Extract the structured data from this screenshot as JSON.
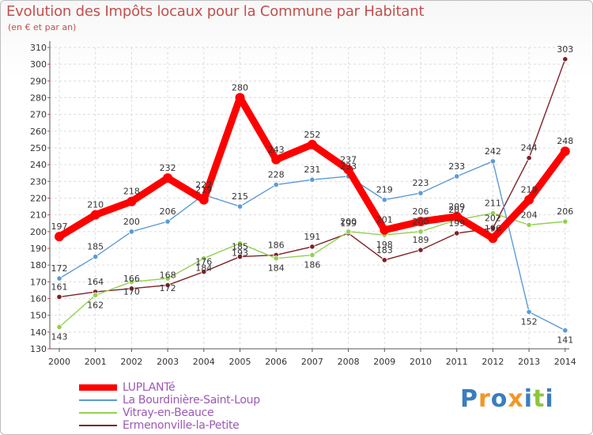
{
  "chart_data": {
    "type": "line",
    "title": "Evolution des Impôts locaux pour la Commune par Habitant",
    "subtitle": "(en € et par an)",
    "x": [
      "2000",
      "2001",
      "2002",
      "2003",
      "2004",
      "2005",
      "2006",
      "2007",
      "2008",
      "2009",
      "2010",
      "2011",
      "2012",
      "2013",
      "2014"
    ],
    "yticks": [
      130,
      140,
      150,
      160,
      170,
      180,
      190,
      200,
      210,
      220,
      230,
      240,
      250,
      260,
      270,
      280,
      290,
      300,
      310
    ],
    "ylim": [
      130,
      310
    ],
    "grid": true,
    "legend_position": "bottom-left",
    "series": [
      {
        "name": "LUPLANTé",
        "color": "#ff0000",
        "values": [
          197,
          210,
          218,
          232,
          219,
          280,
          243,
          252,
          237,
          201,
          206,
          209,
          196,
          219,
          248
        ],
        "labels": [
          "197",
          "210",
          "218",
          "232",
          "219",
          "280",
          "243",
          "252",
          "237",
          "201",
          "206",
          "209",
          "196",
          "219",
          "248"
        ]
      },
      {
        "name": "La Bourdinière-Saint-Loup",
        "color": "#5b9bd5",
        "values": [
          172,
          185,
          200,
          206,
          222,
          215,
          228,
          231,
          233,
          219,
          223,
          233,
          242,
          152,
          141
        ],
        "labels": [
          "172",
          "185",
          "200",
          "206",
          "222",
          "215",
          "228",
          "231",
          "233",
          "219",
          "223",
          "233",
          "242",
          "152",
          "141"
        ]
      },
      {
        "name": "Vitray-en-Beauce",
        "color": "#92d050",
        "values": [
          143,
          162,
          170,
          172,
          184,
          193,
          184,
          186,
          200,
          198,
          200,
          207,
          211,
          204,
          206
        ],
        "labels": [
          "143",
          "162",
          "170",
          "172",
          "184",
          "193",
          "184",
          "186",
          "200",
          "198",
          "200",
          "207",
          "211",
          "204",
          "206"
        ]
      },
      {
        "name": "Ermenonville-la-Petite",
        "color": "#7f2027",
        "values": [
          161,
          164,
          166,
          168,
          176,
          185,
          186,
          191,
          199,
          183,
          189,
          199,
          202,
          244,
          303
        ],
        "labels": [
          "161",
          "164",
          "166",
          "168",
          "176",
          "185",
          "186",
          "191",
          "199",
          "183",
          "189",
          "199",
          "202",
          "244",
          "303"
        ]
      }
    ]
  },
  "brand": {
    "text": "Proxiti",
    "letters": [
      "P",
      "r",
      "o",
      "x",
      "i",
      "t",
      "i"
    ],
    "colors": [
      "#3a7ebf",
      "#f29727",
      "#3a7ebf",
      "#f29727",
      "#3a7ebf",
      "#8cc63f",
      "#3a7ebf"
    ]
  }
}
